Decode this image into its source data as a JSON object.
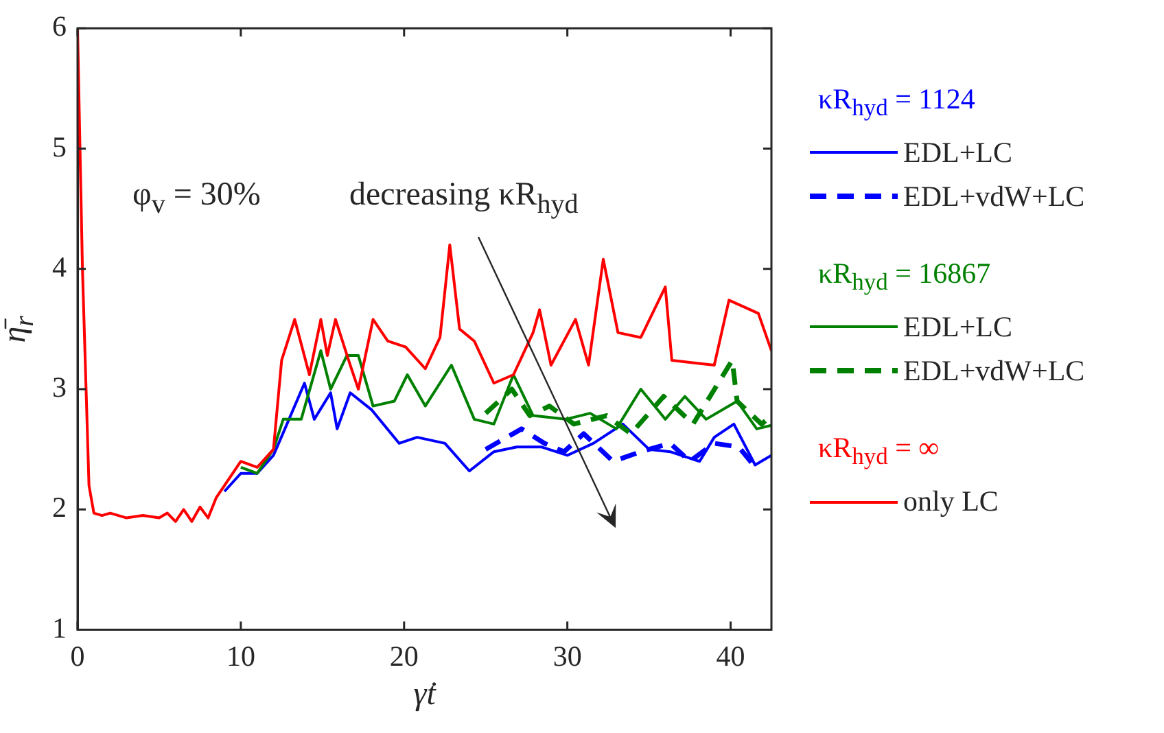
{
  "chart_data": {
    "type": "line",
    "xlabel": "γ̇t",
    "ylabel": "η̄$_{r}$",
    "xlim": [
      0,
      42.5
    ],
    "ylim": [
      1,
      6
    ],
    "xticks": [
      0,
      10,
      20,
      30,
      40
    ],
    "yticks": [
      1,
      2,
      3,
      4,
      5,
      6
    ],
    "grid": false,
    "legend": "right",
    "marker": "none",
    "line_style": "solid",
    "annotations": [
      "φ$_{v}$ = 30%",
      "decreasing κR$_{hyd}$",
      "κR$_{hyd}$ = 1124",
      "κR$_{hyd}$ = 16867",
      "κR$_{hyd}$ = ∞"
    ],
    "series": [
      {
        "name": "EDL+LC",
        "color": "#0000ff",
        "x": [
          9,
          10,
          11,
          12,
          12.7,
          13.9,
          14.5,
          15.5,
          15.9,
          16.7,
          18,
          19.7,
          20.8,
          22.5,
          24,
          25.5,
          26.9,
          28.4,
          30,
          31.6,
          33.4,
          35,
          36.3,
          38.1,
          39,
          40.2,
          41.5,
          42.5
        ],
        "values": [
          2.15,
          2.3,
          2.3,
          2.45,
          2.67,
          3.05,
          2.75,
          2.97,
          2.67,
          2.97,
          2.83,
          2.55,
          2.6,
          2.55,
          2.32,
          2.48,
          2.52,
          2.52,
          2.45,
          2.55,
          2.71,
          2.5,
          2.48,
          2.4,
          2.6,
          2.71,
          2.37,
          2.45
        ]
      },
      {
        "name": "EDL+vdW+LC",
        "color": "#0000ff",
        "line_style": "dashed",
        "x": [
          25,
          27.2,
          28.6,
          29.8,
          31,
          32.8,
          34.5,
          36.3,
          37.5,
          39,
          40.5,
          41.7
        ],
        "values": [
          2.5,
          2.67,
          2.55,
          2.48,
          2.63,
          2.4,
          2.48,
          2.55,
          2.4,
          2.55,
          2.52,
          2.32
        ]
      },
      {
        "name": "EDL+LC",
        "color": "#008000",
        "x": [
          10,
          11,
          12,
          12.6,
          13.7,
          14.9,
          15.5,
          16.5,
          17.2,
          18.1,
          19.4,
          20.2,
          21.3,
          22.9,
          24.3,
          25.5,
          26.7,
          27.9,
          29.9,
          31.4,
          33,
          34.5,
          36,
          37.2,
          38.5,
          40.4,
          41.6,
          42.5
        ],
        "values": [
          2.35,
          2.3,
          2.5,
          2.75,
          2.75,
          3.32,
          3,
          3.28,
          3.28,
          2.86,
          2.9,
          3.12,
          2.86,
          3.2,
          2.75,
          2.71,
          3.12,
          2.78,
          2.75,
          2.8,
          2.67,
          3,
          2.75,
          2.94,
          2.75,
          2.9,
          2.67,
          2.7
        ]
      },
      {
        "name": "EDL+vdW+LC",
        "color": "#008000",
        "line_style": "dashed",
        "x": [
          25,
          26.6,
          27.7,
          28.9,
          30.4,
          32.4,
          33.9,
          35.9,
          37.7,
          40.1,
          40.4,
          41.9,
          42.5
        ],
        "values": [
          2.8,
          3,
          2.78,
          2.86,
          2.71,
          2.78,
          2.63,
          2.94,
          2.71,
          3.24,
          2.9,
          2.71,
          2.78
        ]
      },
      {
        "name": "only LC",
        "color": "#ff0000",
        "x": [
          0,
          0.3,
          0.7,
          1,
          1.5,
          2,
          3,
          4,
          5,
          5.5,
          6,
          6.5,
          7,
          7.5,
          8,
          8.5,
          9,
          10,
          11,
          12,
          12.5,
          13.3,
          14.2,
          14.9,
          15.3,
          15.8,
          16.7,
          17.2,
          18.1,
          19,
          20.1,
          21.3,
          22.2,
          22.8,
          23.4,
          24.3,
          25.5,
          26.7,
          27.9,
          28.3,
          29,
          30.5,
          31.3,
          32.2,
          33.1,
          34.5,
          36,
          36.4,
          39,
          39.9,
          41.7,
          42.5
        ],
        "values": [
          6,
          4,
          2.2,
          1.97,
          1.95,
          1.97,
          1.93,
          1.95,
          1.93,
          1.97,
          1.9,
          2,
          1.9,
          2.02,
          1.93,
          2.1,
          2.2,
          2.4,
          2.35,
          2.5,
          3.24,
          3.58,
          3.12,
          3.58,
          3.28,
          3.58,
          3.2,
          3,
          3.58,
          3.4,
          3.35,
          3.17,
          3.43,
          4.2,
          3.5,
          3.4,
          3.05,
          3.12,
          3.47,
          3.66,
          3.2,
          3.58,
          3.2,
          4.08,
          3.47,
          3.43,
          3.85,
          3.24,
          3.2,
          3.74,
          3.63,
          3.32
        ]
      }
    ]
  }
}
